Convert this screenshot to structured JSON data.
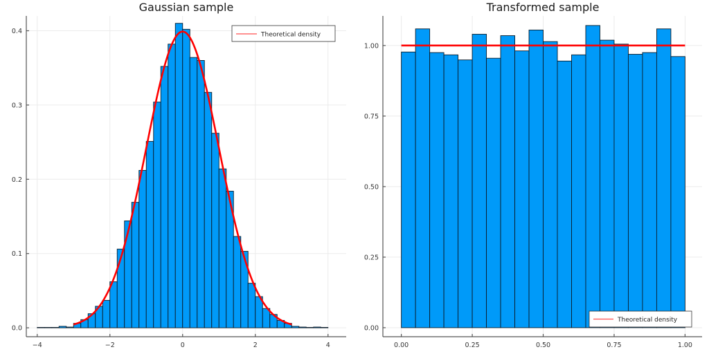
{
  "chart_data": [
    {
      "type": "bar",
      "subtype": "histogram",
      "title": "Gaussian sample",
      "xlabel": "",
      "ylabel": "",
      "xlim": [
        -4.3,
        4.5
      ],
      "ylim": [
        -0.012,
        0.42
      ],
      "xticks": [
        -4,
        -2,
        0,
        2,
        4
      ],
      "xtick_labels": [
        "−4",
        "−2",
        "0",
        "2",
        "4"
      ],
      "yticks": [
        0.0,
        0.1,
        0.2,
        0.3,
        0.4
      ],
      "ytick_labels": [
        "0.0",
        "0.1",
        "0.2",
        "0.3",
        "0.4"
      ],
      "grid": true,
      "legend": {
        "position": "top-right",
        "entries": [
          "Theoretical density"
        ]
      },
      "bin_width": 0.2,
      "bin_edges_start": -4.0,
      "series": [
        {
          "name": "Histogram",
          "color": "#009af9",
          "values": [
            0.0,
            0.0,
            0.0,
            0.002,
            0.001,
            0.006,
            0.011,
            0.019,
            0.029,
            0.037,
            0.062,
            0.106,
            0.144,
            0.169,
            0.212,
            0.251,
            0.304,
            0.352,
            0.382,
            0.41,
            0.402,
            0.364,
            0.36,
            0.317,
            0.262,
            0.214,
            0.184,
            0.123,
            0.103,
            0.06,
            0.042,
            0.026,
            0.018,
            0.01,
            0.006,
            0.002,
            0.001,
            0.0,
            0.001,
            0.0
          ]
        },
        {
          "name": "Theoretical density",
          "type": "line",
          "color": "#ff0000",
          "function": "normal_pdf",
          "mean": 0,
          "std": 1,
          "x_range": [
            -3.0,
            3.0
          ]
        }
      ]
    },
    {
      "type": "bar",
      "subtype": "histogram",
      "title": "Transformed sample",
      "xlabel": "",
      "ylabel": "",
      "xlim": [
        -0.065,
        1.06
      ],
      "ylim": [
        -0.032,
        1.105
      ],
      "xticks": [
        0.0,
        0.25,
        0.5,
        0.75,
        1.0
      ],
      "xtick_labels": [
        "0.00",
        "0.25",
        "0.50",
        "0.75",
        "1.00"
      ],
      "yticks": [
        0.0,
        0.25,
        0.5,
        0.75,
        1.0
      ],
      "ytick_labels": [
        "0.00",
        "0.25",
        "0.50",
        "0.75",
        "1.00"
      ],
      "grid": true,
      "legend": {
        "position": "bottom-right",
        "entries": [
          "Theoretical density"
        ]
      },
      "bin_width": 0.05,
      "bin_edges_start": 0.0,
      "series": [
        {
          "name": "Histogram",
          "color": "#009af9",
          "values": [
            0.977,
            1.059,
            0.975,
            0.967,
            0.949,
            1.04,
            0.955,
            1.035,
            0.981,
            1.055,
            1.014,
            0.945,
            0.967,
            1.071,
            1.019,
            1.005,
            0.969,
            0.975,
            1.059,
            0.961
          ]
        },
        {
          "name": "Theoretical density",
          "type": "line",
          "color": "#ff0000",
          "function": "constant",
          "value": 1.0,
          "x_range": [
            0.0,
            1.0
          ]
        }
      ]
    }
  ]
}
